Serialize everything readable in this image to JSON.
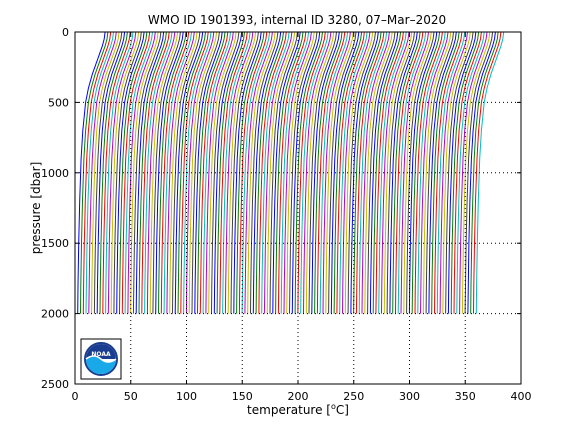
{
  "chart_data": {
    "type": "line",
    "title": "WMO ID 1901393, internal ID 3280, 07–Mar–2020",
    "xlabel_pre": "temperature [",
    "xlabel_sup": "o",
    "xlabel_post": "C]",
    "ylabel": "pressure [dbar]",
    "xlim": [
      0,
      400
    ],
    "ylim": [
      0,
      2500
    ],
    "y_reversed": true,
    "grid": true,
    "x_ticks": [
      "0",
      "50",
      "100",
      "150",
      "200",
      "250",
      "300",
      "350",
      "400"
    ],
    "y_ticks": [
      "0",
      "500",
      "1000",
      "1500",
      "2000",
      "2500"
    ],
    "series_description": "Successive temperature profiles, each shifted along the temperature axis; profiles span 0–2000 dbar",
    "series_colors": [
      "#0000ff",
      "#008000",
      "#ff0000",
      "#00bfbf",
      "#bf00bf",
      "#bfbf00",
      "#404040"
    ],
    "profile_count": 144,
    "profile_offset_step": 2.5,
    "profile": {
      "pressure": [
        0,
        50,
        100,
        200,
        300,
        400,
        500,
        700,
        900,
        1200,
        1500,
        1800,
        2000
      ],
      "temperature": [
        27.0,
        26.2,
        24.5,
        20.0,
        15.5,
        12.0,
        9.5,
        7.0,
        5.5,
        4.2,
        3.3,
        2.7,
        2.4
      ]
    },
    "logo": "noaa-logo"
  }
}
